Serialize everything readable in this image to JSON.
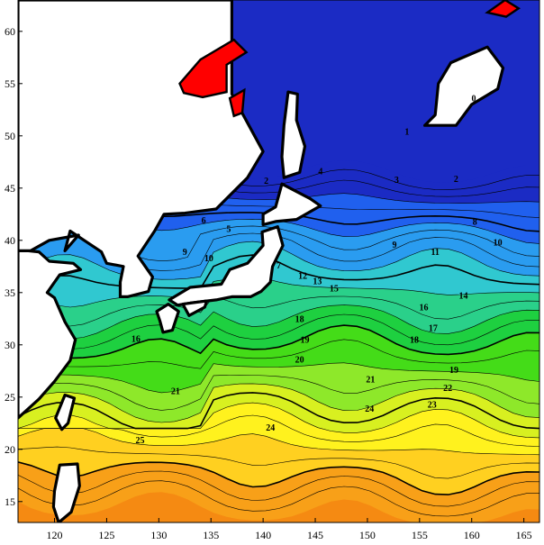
{
  "map": {
    "x_ticks": [
      {
        "value": 120,
        "label": "120"
      },
      {
        "value": 125,
        "label": "125"
      },
      {
        "value": 130,
        "label": "130"
      },
      {
        "value": 135,
        "label": "135"
      },
      {
        "value": 140,
        "label": "140"
      },
      {
        "value": 145,
        "label": "145"
      },
      {
        "value": 150,
        "label": "150"
      },
      {
        "value": 155,
        "label": "155"
      },
      {
        "value": 160,
        "label": "160"
      },
      {
        "value": 165,
        "label": "165"
      }
    ],
    "y_ticks": [
      {
        "value": 15,
        "label": "15"
      },
      {
        "value": 20,
        "label": "20"
      },
      {
        "value": 25,
        "label": "25"
      },
      {
        "value": 30,
        "label": "30"
      },
      {
        "value": 35,
        "label": "35"
      },
      {
        "value": 40,
        "label": "40"
      },
      {
        "value": 45,
        "label": "45"
      },
      {
        "value": 50,
        "label": "50"
      },
      {
        "value": 55,
        "label": "55"
      },
      {
        "value": 60,
        "label": "60"
      }
    ],
    "lon_range": [
      116.5,
      166.5
    ],
    "lat_range": [
      13,
      63
    ],
    "color_scale": [
      {
        "value": -1,
        "color": "#ff0000"
      },
      {
        "value": 0,
        "color": "#1b2bc4"
      },
      {
        "value": 3,
        "color": "#2060ee"
      },
      {
        "value": 6,
        "color": "#2a9cf0"
      },
      {
        "value": 9,
        "color": "#30c8d0"
      },
      {
        "value": 11,
        "color": "#2ad08a"
      },
      {
        "value": 13,
        "color": "#1ed040"
      },
      {
        "value": 15,
        "color": "#44dc18"
      },
      {
        "value": 17,
        "color": "#8ee82a"
      },
      {
        "value": 19,
        "color": "#d8f020"
      },
      {
        "value": 21,
        "color": "#fff21e"
      },
      {
        "value": 23,
        "color": "#ffd020"
      },
      {
        "value": 25,
        "color": "#f8a018"
      },
      {
        "value": 28,
        "color": "#f58a12"
      }
    ],
    "land_color": "#ffffff",
    "contour_labels": [
      {
        "text": "0",
        "lon": 160.2,
        "lat": 53.5
      },
      {
        "text": "1",
        "lon": 153.8,
        "lat": 50.3
      },
      {
        "text": "2",
        "lon": 158.5,
        "lat": 45.8
      },
      {
        "text": "2",
        "lon": 140.3,
        "lat": 45.6
      },
      {
        "text": "3",
        "lon": 152.8,
        "lat": 45.7
      },
      {
        "text": "4",
        "lon": 145.5,
        "lat": 46.5
      },
      {
        "text": "5",
        "lon": 136.7,
        "lat": 41.0
      },
      {
        "text": "6",
        "lon": 134.3,
        "lat": 41.8
      },
      {
        "text": "7",
        "lon": 141.5,
        "lat": 37.5
      },
      {
        "text": "8",
        "lon": 160.3,
        "lat": 41.7
      },
      {
        "text": "9",
        "lon": 152.6,
        "lat": 39.5
      },
      {
        "text": "9",
        "lon": 132.5,
        "lat": 38.8
      },
      {
        "text": "10",
        "lon": 162.5,
        "lat": 39.7
      },
      {
        "text": "10",
        "lon": 134.8,
        "lat": 38.2
      },
      {
        "text": "11",
        "lon": 156.5,
        "lat": 38.8
      },
      {
        "text": "12",
        "lon": 143.8,
        "lat": 36.5
      },
      {
        "text": "13",
        "lon": 145.2,
        "lat": 36.0
      },
      {
        "text": "14",
        "lon": 159.2,
        "lat": 34.6
      },
      {
        "text": "15",
        "lon": 146.8,
        "lat": 35.3
      },
      {
        "text": "16",
        "lon": 155.4,
        "lat": 33.5
      },
      {
        "text": "16",
        "lon": 127.8,
        "lat": 30.5
      },
      {
        "text": "17",
        "lon": 156.3,
        "lat": 31.5
      },
      {
        "text": "18",
        "lon": 143.5,
        "lat": 32.4
      },
      {
        "text": "18",
        "lon": 154.5,
        "lat": 30.4
      },
      {
        "text": "19",
        "lon": 144.0,
        "lat": 30.4
      },
      {
        "text": "19",
        "lon": 158.3,
        "lat": 27.5
      },
      {
        "text": "20",
        "lon": 143.5,
        "lat": 28.5
      },
      {
        "text": "21",
        "lon": 150.3,
        "lat": 26.6
      },
      {
        "text": "21",
        "lon": 131.6,
        "lat": 25.5
      },
      {
        "text": "22",
        "lon": 157.7,
        "lat": 25.8
      },
      {
        "text": "23",
        "lon": 156.2,
        "lat": 24.2
      },
      {
        "text": "24",
        "lon": 140.7,
        "lat": 22.0
      },
      {
        "text": "24",
        "lon": 150.2,
        "lat": 23.8
      },
      {
        "text": "25",
        "lon": 128.2,
        "lat": 20.8
      }
    ]
  }
}
